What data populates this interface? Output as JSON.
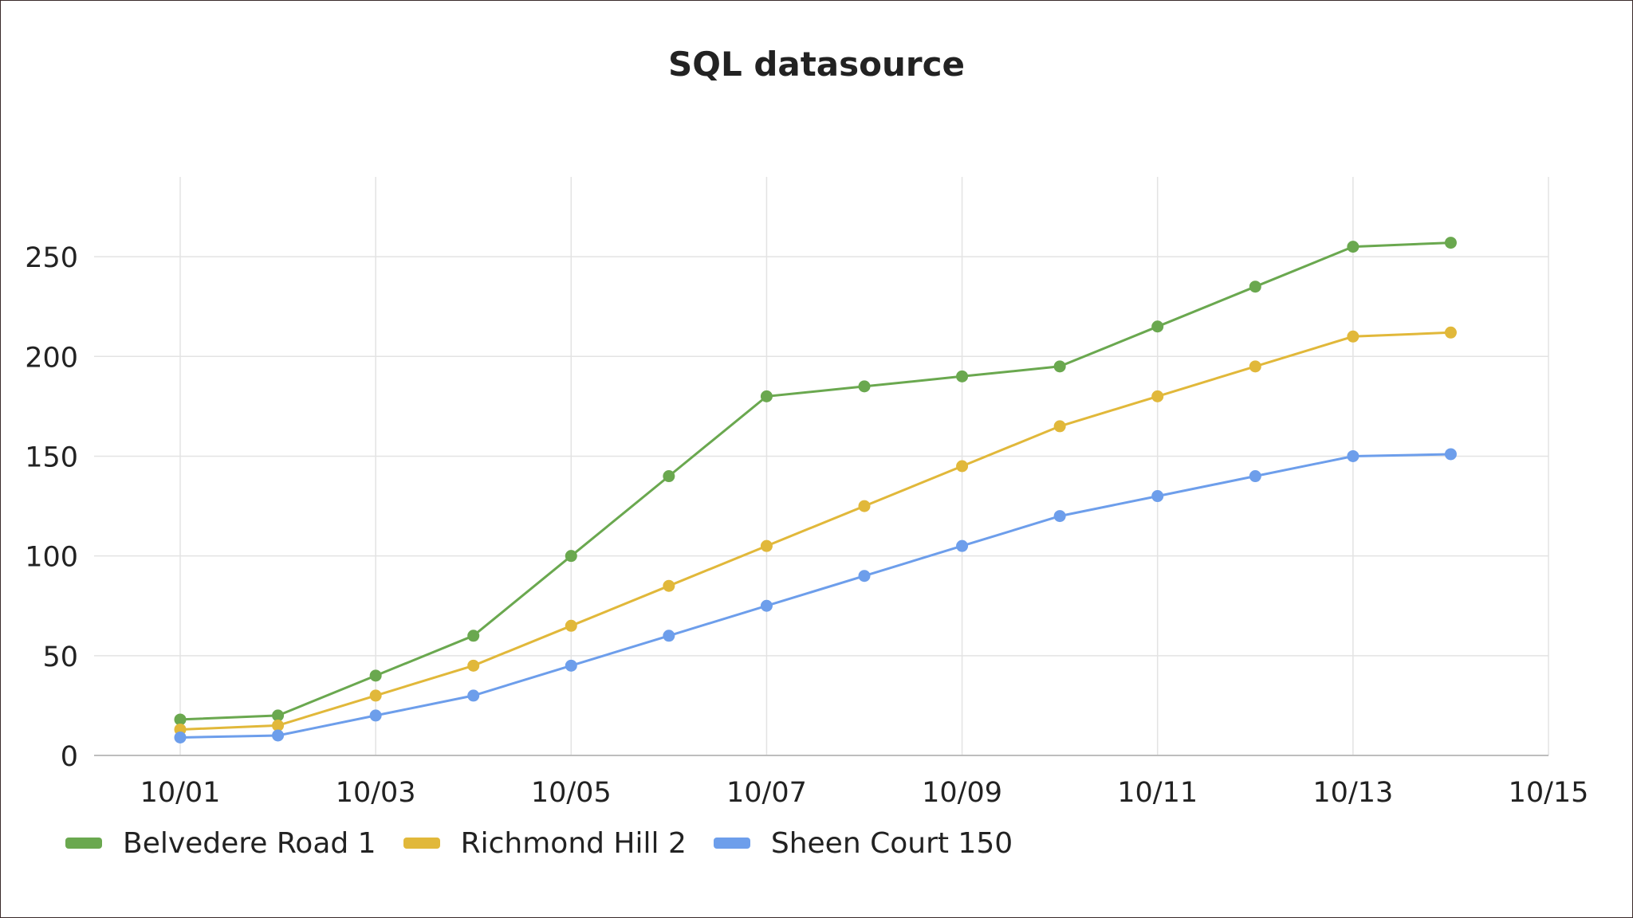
{
  "chart_data": {
    "type": "line",
    "title": "SQL datasource",
    "xlabel": "",
    "ylabel": "",
    "x": [
      "10/01",
      "10/02",
      "10/03",
      "10/04",
      "10/05",
      "10/06",
      "10/07",
      "10/08",
      "10/09",
      "10/10",
      "10/11",
      "10/12",
      "10/13",
      "10/14"
    ],
    "x_ticks": [
      "10/01",
      "10/03",
      "10/05",
      "10/07",
      "10/09",
      "10/11",
      "10/13",
      "10/15"
    ],
    "y_ticks": [
      0,
      50,
      100,
      150,
      200,
      250
    ],
    "xlim": [
      "10/01",
      "10/15"
    ],
    "ylim": [
      0,
      290
    ],
    "grid": true,
    "legend_position": "bottom-left",
    "series": [
      {
        "name": "Belvedere Road 1",
        "color": "#6aa84f",
        "values": [
          18,
          20,
          40,
          60,
          100,
          140,
          180,
          185,
          190,
          195,
          215,
          235,
          255,
          257
        ]
      },
      {
        "name": "Richmond Hill 2",
        "color": "#e1b83a",
        "values": [
          13,
          15,
          30,
          45,
          65,
          85,
          105,
          125,
          145,
          165,
          180,
          195,
          210,
          212
        ]
      },
      {
        "name": "Sheen Court 150",
        "color": "#6d9eeb",
        "values": [
          9,
          10,
          20,
          30,
          45,
          60,
          75,
          90,
          105,
          120,
          130,
          140,
          150,
          151
        ]
      }
    ]
  }
}
